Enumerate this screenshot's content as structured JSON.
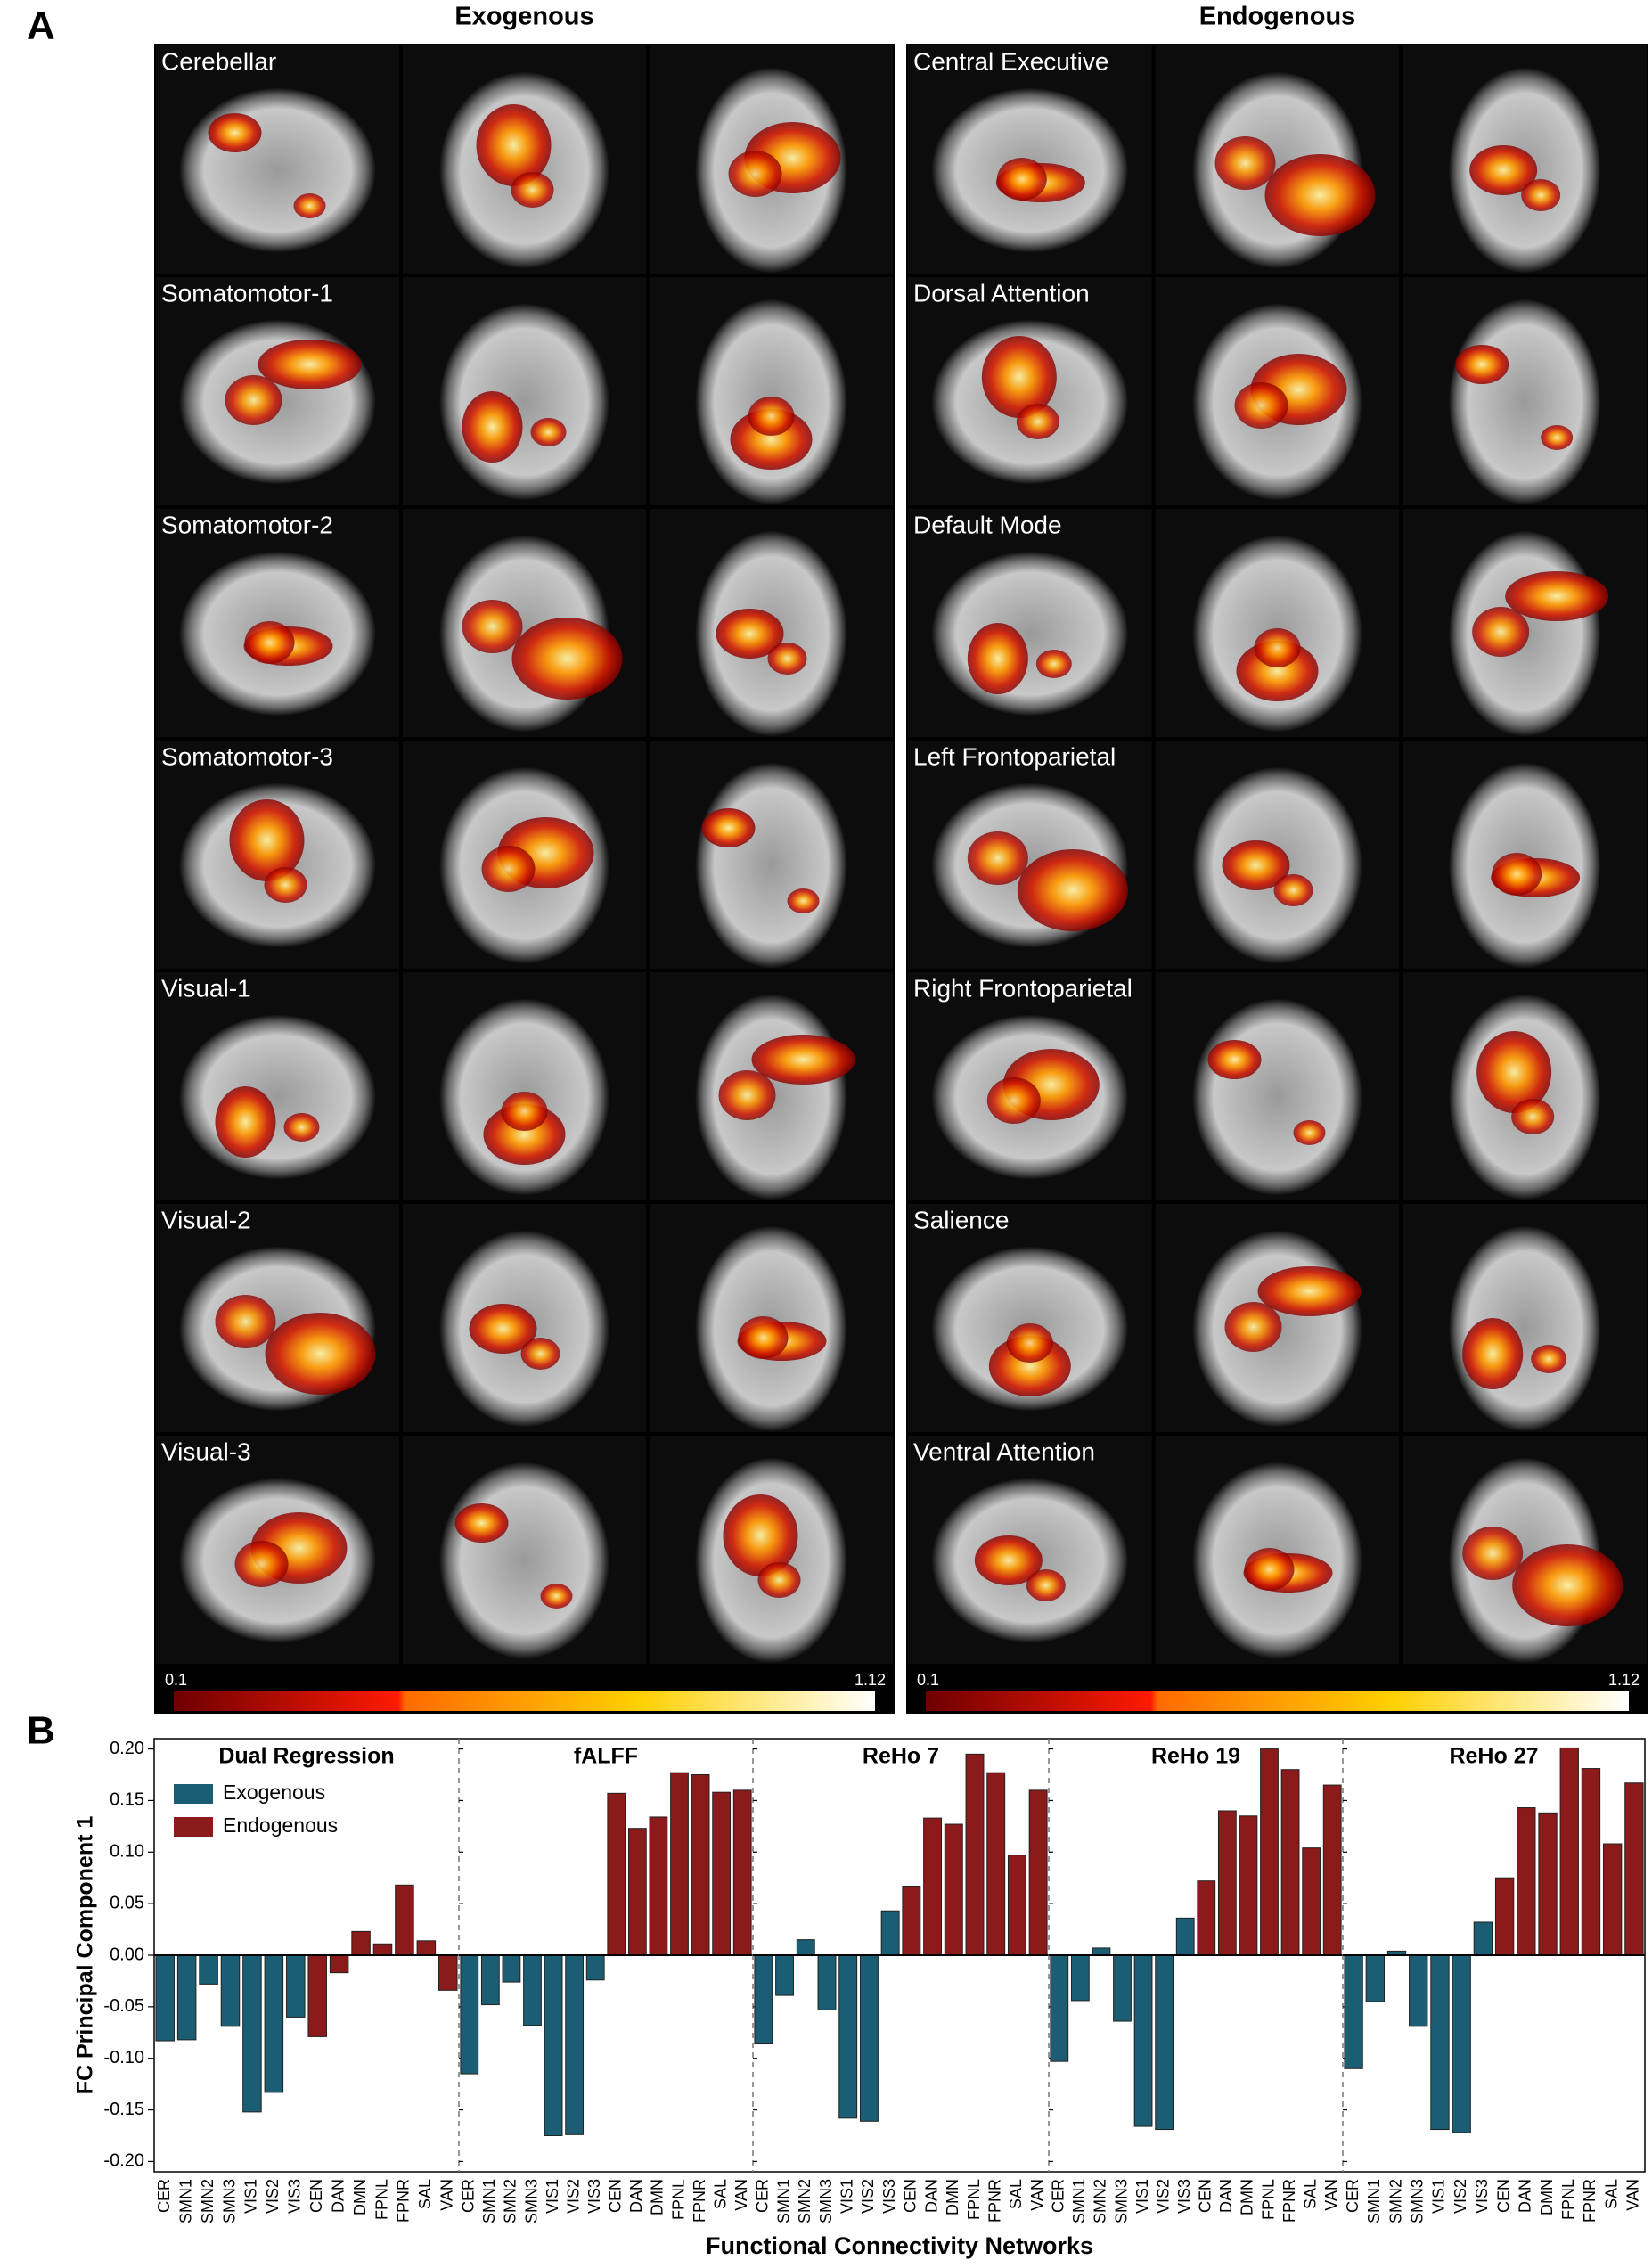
{
  "panel_labels": [
    "A",
    "B"
  ],
  "panel_a": {
    "columns": [
      {
        "title": "Exogenous",
        "networks": [
          "Cerebellar",
          "Somatomotor-1",
          "Somatomotor-2",
          "Somatomotor-3",
          "Visual-1",
          "Visual-2",
          "Visual-3"
        ],
        "colorbar": [
          0.1,
          1.12
        ]
      },
      {
        "title": "Endogenous",
        "networks": [
          "Central Executive",
          "Dorsal Attention",
          "Default Mode",
          "Left Frontoparietal",
          "Right Frontoparietal",
          "Salience",
          "Ventral Attention"
        ],
        "colorbar": [
          0.1,
          1.12
        ]
      }
    ]
  },
  "panel_b": {
    "ylabel": "FC Principal Component 1",
    "xlabel": "Functional Connectivity Networks"
  },
  "chart_data": [
    {
      "type": "bar",
      "title": "Dual Regression",
      "legend": "upper left",
      "categories": [
        "CER",
        "SMN1",
        "SMN2",
        "SMN3",
        "VIS1",
        "VIS2",
        "VIS3",
        "CEN",
        "DAN",
        "DMN",
        "FPNL",
        "FPNR",
        "SAL",
        "VAN"
      ],
      "series": [
        {
          "name": "Exogenous",
          "color": "#1b5d72",
          "values": [
            -0.083,
            -0.082,
            -0.028,
            -0.069,
            -0.152,
            -0.133,
            -0.06,
            null,
            null,
            null,
            null,
            null,
            null,
            null
          ]
        },
        {
          "name": "Endogenous",
          "color": "#8b1a1a",
          "values": [
            null,
            null,
            null,
            null,
            null,
            null,
            null,
            -0.079,
            -0.017,
            0.023,
            0.011,
            0.068,
            0.014,
            -0.034
          ]
        }
      ],
      "ylim": [
        -0.21,
        0.21
      ],
      "yticks": [
        {
          "value": -0.2,
          "label": "-0.20"
        },
        -0.15,
        {
          "value": -0.1,
          "label": "-0.10"
        },
        -0.05,
        {
          "value": 0,
          "label": "0.00"
        },
        0.05,
        {
          "value": 0.1,
          "label": "0.10"
        },
        0.15,
        {
          "value": 0.2,
          "label": "0.20"
        }
      ]
    },
    {
      "type": "bar",
      "title": "fALFF",
      "categories": [
        "CER",
        "SMN1",
        "SMN2",
        "SMN3",
        "VIS1",
        "VIS2",
        "VIS3",
        "CEN",
        "DAN",
        "DMN",
        "FPNL",
        "FPNR",
        "SAL",
        "VAN"
      ],
      "series": [
        {
          "name": "Exogenous",
          "color": "#1b5d72",
          "values": [
            -0.115,
            -0.048,
            -0.026,
            -0.068,
            -0.175,
            -0.174,
            -0.024,
            null,
            null,
            null,
            null,
            null,
            null,
            null
          ]
        },
        {
          "name": "Endogenous",
          "color": "#8b1a1a",
          "values": [
            null,
            null,
            null,
            null,
            null,
            null,
            null,
            0.157,
            0.123,
            0.134,
            0.177,
            0.175,
            0.158,
            0.16
          ]
        }
      ],
      "ylim": [
        -0.21,
        0.21
      ],
      "yticks": [
        {
          "value": -0.2,
          "label": "-0.20"
        },
        -0.15,
        {
          "value": -0.1,
          "label": "-0.10"
        },
        -0.05,
        {
          "value": 0,
          "label": "0.00"
        },
        0.05,
        {
          "value": 0.1,
          "label": "0.10"
        },
        0.15,
        {
          "value": 0.2,
          "label": "0.20"
        }
      ]
    },
    {
      "type": "bar",
      "title": "ReHo 7",
      "categories": [
        "CER",
        "SMN1",
        "SMN2",
        "SMN3",
        "VIS1",
        "VIS2",
        "VIS3",
        "CEN",
        "DAN",
        "DMN",
        "FPNL",
        "FPNR",
        "SAL",
        "VAN"
      ],
      "series": [
        {
          "name": "Exogenous",
          "color": "#1b5d72",
          "values": [
            -0.086,
            -0.039,
            0.015,
            -0.053,
            -0.158,
            -0.161,
            0.043,
            null,
            null,
            null,
            null,
            null,
            null,
            null
          ]
        },
        {
          "name": "Endogenous",
          "color": "#8b1a1a",
          "values": [
            null,
            null,
            null,
            null,
            null,
            null,
            null,
            0.067,
            0.133,
            0.127,
            0.195,
            0.177,
            0.097,
            0.16
          ]
        }
      ],
      "ylim": [
        -0.21,
        0.21
      ],
      "yticks": [
        {
          "value": -0.2,
          "label": "-0.20"
        },
        -0.15,
        {
          "value": -0.1,
          "label": "-0.10"
        },
        -0.05,
        {
          "value": 0,
          "label": "0.00"
        },
        0.05,
        {
          "value": 0.1,
          "label": "0.10"
        },
        0.15,
        {
          "value": 0.2,
          "label": "0.20"
        }
      ]
    },
    {
      "type": "bar",
      "title": "ReHo 19",
      "categories": [
        "CER",
        "SMN1",
        "SMN2",
        "SMN3",
        "VIS1",
        "VIS2",
        "VIS3",
        "CEN",
        "DAN",
        "DMN",
        "FPNL",
        "FPNR",
        "SAL",
        "VAN"
      ],
      "series": [
        {
          "name": "Exogenous",
          "color": "#1b5d72",
          "values": [
            -0.103,
            -0.044,
            0.007,
            -0.064,
            -0.166,
            -0.169,
            0.036,
            null,
            null,
            null,
            null,
            null,
            null,
            null
          ]
        },
        {
          "name": "Endogenous",
          "color": "#8b1a1a",
          "values": [
            null,
            null,
            null,
            null,
            null,
            null,
            null,
            0.072,
            0.14,
            0.135,
            0.2,
            0.18,
            0.104,
            0.165
          ]
        }
      ],
      "ylim": [
        -0.21,
        0.21
      ],
      "yticks": [
        {
          "value": -0.2,
          "label": "-0.20"
        },
        -0.15,
        {
          "value": -0.1,
          "label": "-0.10"
        },
        -0.05,
        {
          "value": 0,
          "label": "0.00"
        },
        0.05,
        {
          "value": 0.1,
          "label": "0.10"
        },
        0.15,
        {
          "value": 0.2,
          "label": "0.20"
        }
      ]
    },
    {
      "type": "bar",
      "title": "ReHo 27",
      "categories": [
        "CER",
        "SMN1",
        "SMN2",
        "SMN3",
        "VIS1",
        "VIS2",
        "VIS3",
        "CEN",
        "DAN",
        "DMN",
        "FPNL",
        "FPNR",
        "SAL",
        "VAN"
      ],
      "series": [
        {
          "name": "Exogenous",
          "color": "#1b5d72",
          "values": [
            -0.11,
            -0.045,
            0.004,
            -0.069,
            -0.169,
            -0.172,
            0.032,
            null,
            null,
            null,
            null,
            null,
            null,
            null
          ]
        },
        {
          "name": "Endogenous",
          "color": "#8b1a1a",
          "values": [
            null,
            null,
            null,
            null,
            null,
            null,
            null,
            0.075,
            0.143,
            0.138,
            0.201,
            0.181,
            0.108,
            0.167
          ]
        }
      ],
      "ylim": [
        -0.21,
        0.21
      ],
      "yticks": [
        {
          "value": -0.2,
          "label": "-0.20"
        },
        -0.15,
        {
          "value": -0.1,
          "label": "-0.10"
        },
        -0.05,
        {
          "value": 0,
          "label": "0.00"
        },
        0.05,
        {
          "value": 0.1,
          "label": "0.10"
        },
        0.15,
        {
          "value": 0.2,
          "label": "0.20"
        }
      ]
    }
  ]
}
